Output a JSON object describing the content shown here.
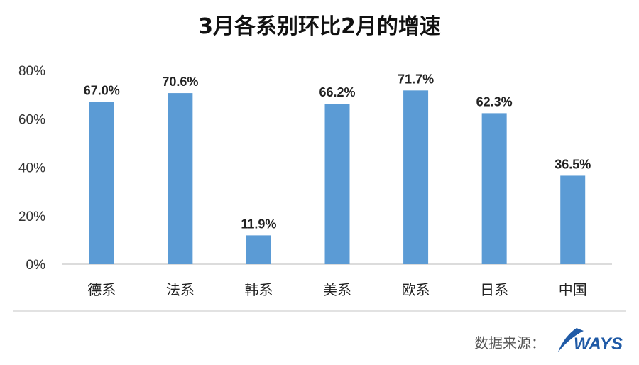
{
  "chart_data": {
    "type": "bar",
    "title": "3月各系别环比2月的增速",
    "categories": [
      "德系",
      "法系",
      "韩系",
      "美系",
      "欧系",
      "日系",
      "中国"
    ],
    "values": [
      67.0,
      70.6,
      11.9,
      66.2,
      71.7,
      62.3,
      36.5
    ],
    "data_labels": [
      "67.0%",
      "70.6%",
      "11.9%",
      "66.2%",
      "71.7%",
      "62.3%",
      "36.5%"
    ],
    "ylim": [
      0,
      80
    ],
    "yticks": [
      0,
      20,
      40,
      60,
      80
    ],
    "ytick_labels": [
      "0%",
      "20%",
      "40%",
      "60%",
      "80%"
    ],
    "xlabel": "",
    "ylabel": "",
    "grid": false,
    "bar_color": "#5B9BD5"
  },
  "footer": {
    "source_label": "数据来源：",
    "logo_text": "WAYS",
    "logo_color": "#1F5AA6"
  }
}
